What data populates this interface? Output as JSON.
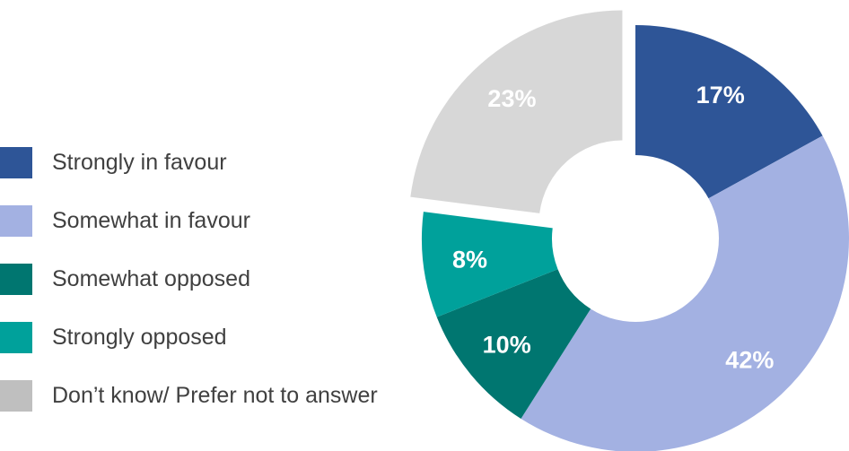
{
  "chart_data": {
    "type": "pie",
    "donut": true,
    "categories": [
      "Strongly in favour",
      "Somewhat in favour",
      "Somewhat opposed",
      "Strongly opposed",
      "Don’t know/ Prefer not to answer"
    ],
    "values": [
      17,
      42,
      10,
      8,
      23
    ],
    "labels": [
      "17%",
      "42%",
      "10%",
      "8%",
      "23%"
    ],
    "colors": [
      "#2E5597",
      "#A3B1E2",
      "#007670",
      "#00A19B",
      "#D7D7D7"
    ],
    "label_colors": [
      "#ffffff",
      "#ffffff",
      "#ffffff",
      "#ffffff",
      "#ffffff"
    ],
    "exploded_category": "Don’t know/ Prefer not to answer",
    "legend_placement": "left",
    "title": ""
  },
  "legend": {
    "items": [
      {
        "label": "Strongly in favour",
        "color": "#2E5597"
      },
      {
        "label": "Somewhat in favour",
        "color": "#A3B1E2"
      },
      {
        "label": "Somewhat opposed",
        "color": "#007670"
      },
      {
        "label": "Strongly opposed",
        "color": "#00A19B"
      },
      {
        "label": "Don’t know/ Prefer not to answer",
        "color": "#BFBFBF"
      }
    ]
  }
}
